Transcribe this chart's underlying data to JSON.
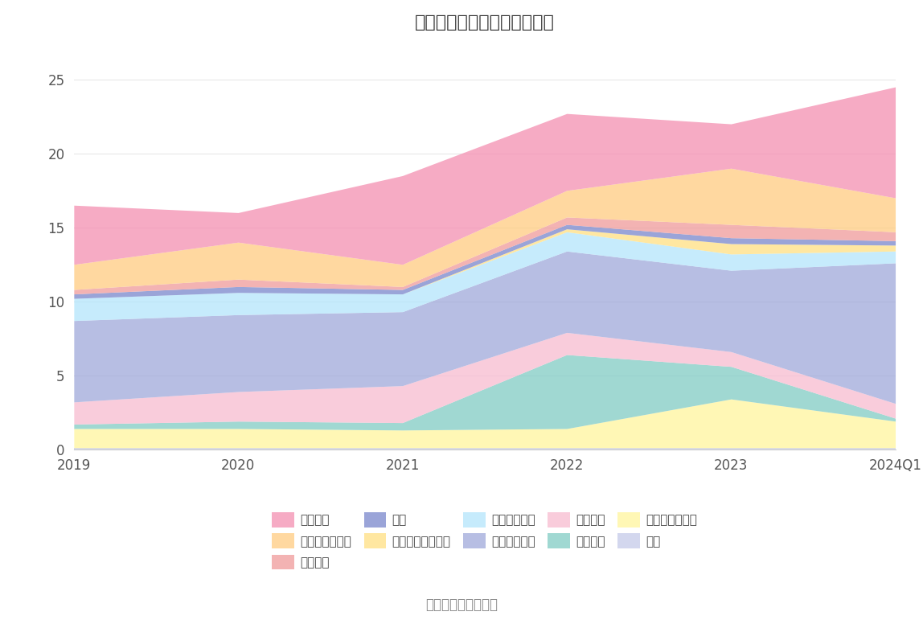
{
  "title": "历年主要资产堆积图（亿元）",
  "x_labels": [
    "2019",
    "2020",
    "2021",
    "2022",
    "2023",
    "2024Q1"
  ],
  "source_text": "数据来源：恒生聚源",
  "series_bottom_to_top": [
    {
      "name": "其它",
      "color": "#c5cae9",
      "values": [
        0.1,
        0.1,
        0.1,
        0.1,
        0.1,
        0.1
      ]
    },
    {
      "name": "其他非流动资产",
      "color": "#fff59d",
      "values": [
        1.3,
        1.3,
        1.2,
        1.3,
        3.3,
        1.8
      ]
    },
    {
      "name": "在建工程",
      "color": "#80cbc4",
      "values": [
        0.3,
        0.5,
        0.5,
        5.0,
        2.2,
        0.2
      ]
    },
    {
      "name": "固定资产",
      "color": "#f8bbd0",
      "values": [
        1.5,
        2.0,
        2.5,
        1.5,
        1.0,
        1.0
      ]
    },
    {
      "name": "投资性房地产",
      "color": "#9fa8da",
      "values": [
        5.5,
        5.2,
        5.0,
        5.5,
        5.5,
        9.5
      ]
    },
    {
      "name": "长期股权投资",
      "color": "#b3e5fc",
      "values": [
        1.5,
        1.5,
        1.2,
        1.3,
        1.1,
        0.8
      ]
    },
    {
      "name": "其他债权投资合计",
      "color": "#ffe082",
      "values": [
        0.0,
        0.0,
        0.0,
        0.2,
        0.7,
        0.4
      ]
    },
    {
      "name": "存货",
      "color": "#7986cb",
      "values": [
        0.3,
        0.4,
        0.3,
        0.3,
        0.4,
        0.3
      ]
    },
    {
      "name": "应收账款",
      "color": "#ef9a9a",
      "values": [
        0.3,
        0.5,
        0.2,
        0.5,
        0.9,
        0.6
      ]
    },
    {
      "name": "交易性金融资产",
      "color": "#ffcc80",
      "values": [
        1.7,
        2.5,
        1.5,
        1.8,
        3.8,
        2.3
      ]
    },
    {
      "name": "货币资金",
      "color": "#f48fb1",
      "values": [
        4.0,
        2.0,
        6.0,
        5.2,
        3.0,
        7.5
      ]
    }
  ],
  "ylim": [
    0,
    27
  ],
  "yticks": [
    0,
    5,
    10,
    15,
    20,
    25
  ],
  "background_color": "#ffffff",
  "grid_color": "#e8e8e8",
  "legend_order": [
    "货币资金",
    "交易性金融资产",
    "应收账款",
    "存货",
    "其他债权投资合计",
    "长期股权投资",
    "投资性房地产",
    "固定资产",
    "在建工程",
    "其他非流动资产",
    "其它"
  ],
  "legend_colors": {
    "货币资金": "#f48fb1",
    "交易性金融资产": "#ffcc80",
    "应收账款": "#ef9a9a",
    "存货": "#7986cb",
    "其他债权投资合计": "#ffe082",
    "长期股权投资": "#b3e5fc",
    "投资性房地产": "#9fa8da",
    "固定资产": "#f8bbd0",
    "在建工程": "#80cbc4",
    "其他非流动资产": "#fff59d",
    "其它": "#c5cae9"
  }
}
